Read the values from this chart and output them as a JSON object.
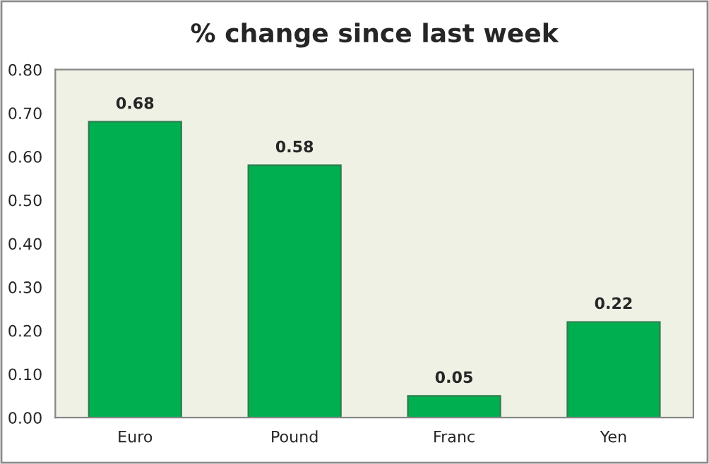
{
  "chart_data": {
    "type": "bar",
    "title": "% change since last week",
    "categories": [
      "Euro",
      "Pound",
      "Franc",
      "Yen"
    ],
    "values": [
      0.68,
      0.58,
      0.05,
      0.22
    ],
    "color": "#00b050",
    "ylim": [
      0,
      0.8
    ],
    "yticks": [
      {
        "value": 0,
        "label": "0.00"
      },
      {
        "value": 0.1,
        "label": "0.10"
      },
      {
        "value": 0.2,
        "label": "0.20"
      },
      {
        "value": 0.3,
        "label": "0.30"
      },
      {
        "value": 0.4,
        "label": "0.40"
      },
      {
        "value": 0.5,
        "label": "0.50"
      },
      {
        "value": 0.6,
        "label": "0.60"
      },
      {
        "value": 0.7,
        "label": "0.70"
      },
      {
        "value": 0.8,
        "label": "0.80"
      }
    ],
    "data_labels": true,
    "grid": false,
    "legend": false
  }
}
